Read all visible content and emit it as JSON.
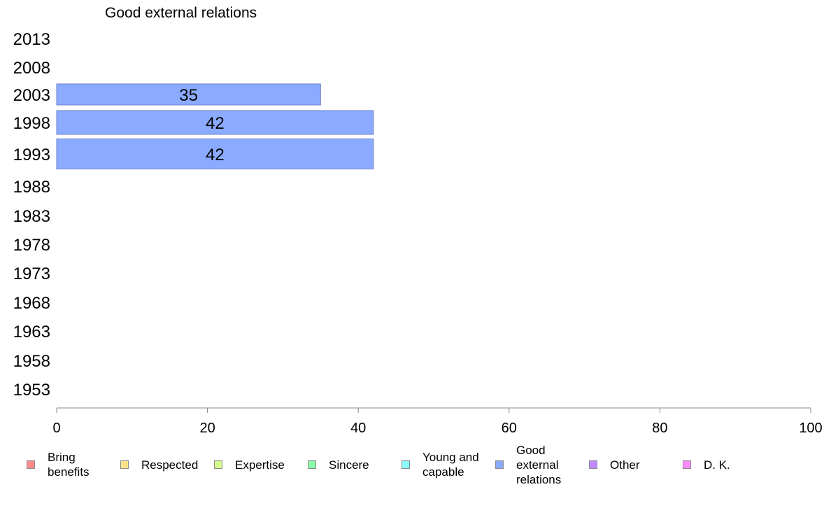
{
  "chart_data": {
    "type": "bar",
    "orientation": "horizontal",
    "title": "Good external relations",
    "xlabel": "",
    "ylabel": "",
    "xlim": [
      0,
      100
    ],
    "x_ticks": [
      "0",
      "20",
      "40",
      "60",
      "80",
      "100"
    ],
    "categories": [
      "2013",
      "2008",
      "2003",
      "1998",
      "1993",
      "1988",
      "1983",
      "1978",
      "1973",
      "1968",
      "1963",
      "1958",
      "1953"
    ],
    "series": [
      {
        "name": "Good external relations",
        "color": "#8aabff",
        "values": [
          null,
          null,
          35,
          42,
          42,
          null,
          null,
          null,
          null,
          null,
          null,
          null,
          null
        ],
        "labels": [
          "",
          "",
          "35",
          "42",
          "42",
          "",
          "",
          "",
          "",
          "",
          "",
          "",
          ""
        ]
      }
    ],
    "legend": {
      "position": "bottom",
      "items": [
        {
          "label": "Bring benefits",
          "color": "#ff8a8a"
        },
        {
          "label": "Respected",
          "color": "#ffe38a"
        },
        {
          "label": "Expertise",
          "color": "#d4ff8a"
        },
        {
          "label": "Sincere",
          "color": "#8affa9"
        },
        {
          "label": "Young and capable",
          "color": "#8affff"
        },
        {
          "label": "Good external relations",
          "color": "#8aabff"
        },
        {
          "label": "Other",
          "color": "#c48aff"
        },
        {
          "label": "D. K.",
          "color": "#ff8aff"
        }
      ]
    },
    "grid": false
  }
}
